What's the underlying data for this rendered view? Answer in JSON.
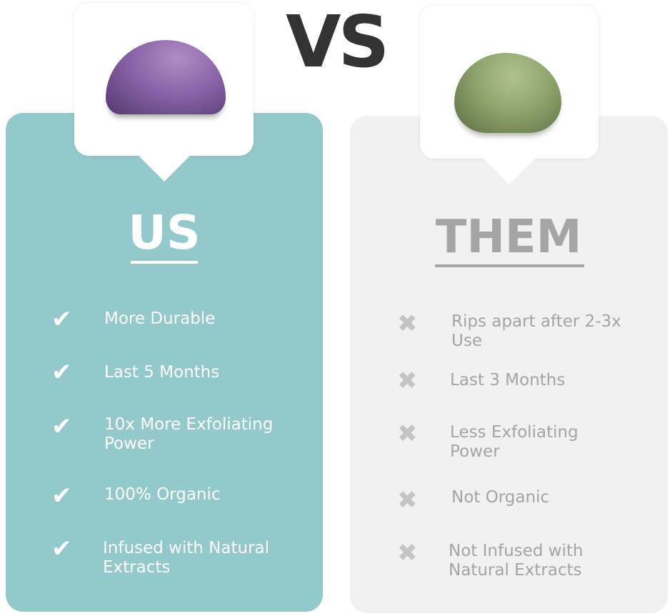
{
  "vs_label": "VS",
  "colors": {
    "us_panel": "#93c9cb",
    "them_panel": "#f1f1f1",
    "vs": "#333333",
    "them_text": "#a5a5a5"
  },
  "us": {
    "title": "US",
    "image": "purple-konjac-sponge",
    "icon": "check-icon",
    "items": [
      "More Durable",
      "Last 5 Months",
      "10x More Exfoliating Power",
      "100% Organic",
      "Infused with Natural Extracts"
    ]
  },
  "them": {
    "title": "THEM",
    "image": "green-konjac-sponge",
    "icon": "x-icon",
    "items": [
      "Rips apart after 2-3x Use",
      "Last 3 Months",
      "Less Exfoliating Power",
      "Not Organic",
      "Not Infused with Natural Extracts"
    ]
  }
}
